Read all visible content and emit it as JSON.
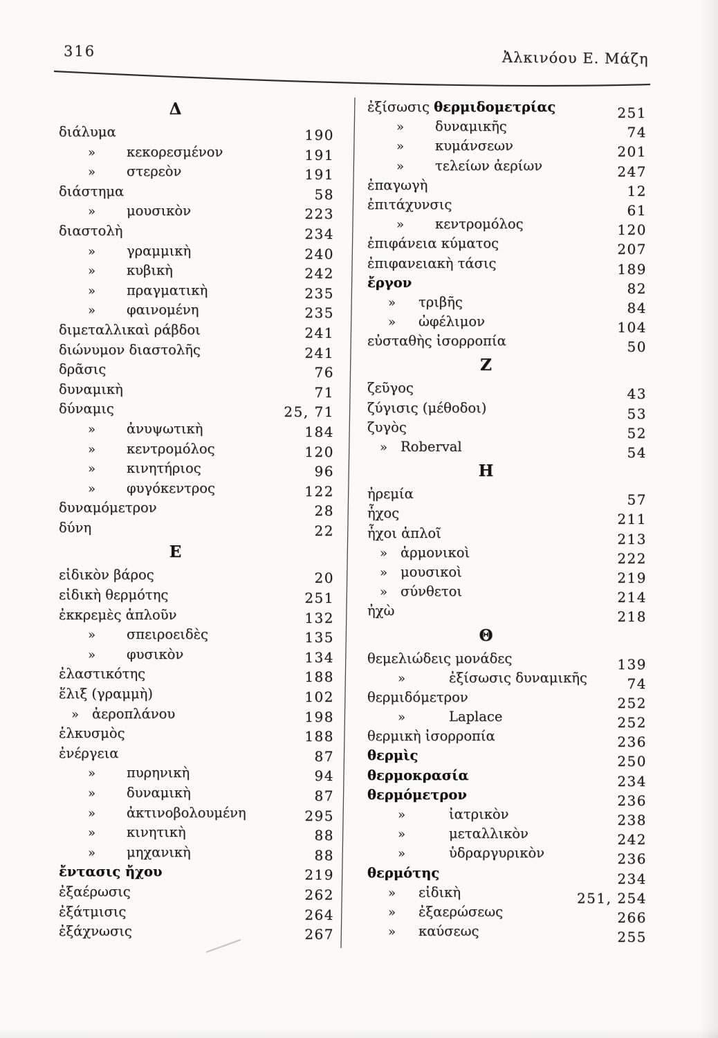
{
  "page": {
    "number": "316",
    "running_title": "Ἀλκινόου Ε. Μάζη"
  },
  "colors": {
    "paper": "#fbfaf7",
    "ink": "#1e1e1e"
  },
  "glyphs": {
    "sub_marker": "»"
  },
  "columns": {
    "left": {
      "sections": [
        {
          "heading": "Δ",
          "entries": [
            {
              "label": "διάλυμα",
              "num": "190",
              "indent": 0
            },
            {
              "label": "κεκορεσμένον",
              "num": "191",
              "indent": 3
            },
            {
              "label": "στερεὸν",
              "num": "191",
              "indent": 3
            },
            {
              "label": "διάστημα",
              "num": "58",
              "indent": 0
            },
            {
              "label": "μουσικὸν",
              "num": "223",
              "indent": 3
            },
            {
              "label": "διαστολὴ",
              "num": "234",
              "indent": 0
            },
            {
              "label": "γραμμικὴ",
              "num": "240",
              "indent": 3
            },
            {
              "label": "κυβικὴ",
              "num": "242",
              "indent": 3
            },
            {
              "label": "πραγματικὴ",
              "num": "235",
              "indent": 3
            },
            {
              "label": "φαινομένη",
              "num": "235",
              "indent": 3
            },
            {
              "label": "διμεταλλικαὶ ράβδοι",
              "num": "241",
              "indent": 0
            },
            {
              "label": "διώνυμον διαστολῆς",
              "num": "241",
              "indent": 0
            },
            {
              "label": "δρᾶσις",
              "num": "76",
              "indent": 0
            },
            {
              "label": "δυναμικὴ",
              "num": "71",
              "indent": 0
            },
            {
              "label": "δύναμις",
              "num": "25, 71",
              "indent": 0
            },
            {
              "label": "ἀνυψωτικὴ",
              "num": "184",
              "indent": 3
            },
            {
              "label": "κεντρομόλος",
              "num": "120",
              "indent": 3
            },
            {
              "label": "κινητήριος",
              "num": "96",
              "indent": 3
            },
            {
              "label": "φυγόκεντρος",
              "num": "122",
              "indent": 3
            },
            {
              "label": "δυναμόμετρον",
              "num": "28",
              "indent": 0
            },
            {
              "label": "δύνη",
              "num": "22",
              "indent": 0
            }
          ]
        },
        {
          "heading": "Ε",
          "entries": [
            {
              "label": "εἰδικὸν βάρος",
              "num": "20",
              "indent": 0
            },
            {
              "label": "εἰδικὴ θερμότης",
              "num": "251",
              "indent": 0
            },
            {
              "label": "ἐκκρεμὲς ἁπλοῦν",
              "num": "132",
              "indent": 0
            },
            {
              "label": "σπειροειδὲς",
              "num": "135",
              "indent": 3
            },
            {
              "label": "φυσικὸν",
              "num": "134",
              "indent": 3
            },
            {
              "label": "ἐλαστικότης",
              "num": "188",
              "indent": 0
            },
            {
              "label": "ἕλιξ (γραμμὴ)",
              "num": "102",
              "indent": 0
            },
            {
              "label": "ἀεροπλάνου",
              "num": "198",
              "indent": 1
            },
            {
              "label": "ἑλκυσμὸς",
              "num": "188",
              "indent": 0
            },
            {
              "label": "ἐνέργεια",
              "num": "87",
              "indent": 0
            },
            {
              "label": "πυρηνικὴ",
              "num": "94",
              "indent": 3
            },
            {
              "label": "δυναμικὴ",
              "num": "87",
              "indent": 3
            },
            {
              "label": "ἀκτινοβολουμένη",
              "num": "295",
              "indent": 3
            },
            {
              "label": "κινητικὴ",
              "num": "88",
              "indent": 3
            },
            {
              "label": "μηχανικὴ",
              "num": "88",
              "indent": 3
            },
            {
              "label": "ἔντασις ἤχου",
              "num": "219",
              "indent": 0,
              "bold": true
            },
            {
              "label": "ἐξαέρωσις",
              "num": "262",
              "indent": 0
            },
            {
              "label": "ἐξάτμισις",
              "num": "264",
              "indent": 0
            },
            {
              "label": "ἐξάχνωσις",
              "num": "267",
              "indent": 0
            }
          ]
        }
      ]
    },
    "right": {
      "sections": [
        {
          "heading": "",
          "entries": [
            {
              "label": "ἐξίσωσις",
              "label_bold": "θερμιδομετρίας",
              "num": "251",
              "indent": 0
            },
            {
              "label": "δυναμικῆς",
              "num": "74",
              "indent": 3
            },
            {
              "label": "κυμάνσεων",
              "num": "201",
              "indent": 3
            },
            {
              "label": "τελείων ἀερίων",
              "num": "247",
              "indent": 3
            },
            {
              "label": "ἐπαγωγὴ",
              "num": "12",
              "indent": 0
            },
            {
              "label": "ἐπιτάχυνσις",
              "num": "61",
              "indent": 0
            },
            {
              "label": "κεντρομόλος",
              "num": "120",
              "indent": 3
            },
            {
              "label": "ἐπιφάνεια κύματος",
              "num": "207",
              "indent": 0
            },
            {
              "label": "ἐπιφανειακὴ τάσις",
              "num": "189",
              "indent": 0
            },
            {
              "label": "ἔργον",
              "num": "82",
              "indent": 0,
              "bold": true
            },
            {
              "label": "τριβῆς",
              "num": "84",
              "indent": 2
            },
            {
              "label": "ὠφέλιμον",
              "num": "104",
              "indent": 2
            },
            {
              "label": "εὐσταθὴς ἰσορροπία",
              "num": "50",
              "indent": 0
            }
          ]
        },
        {
          "heading": "Ζ",
          "entries": [
            {
              "label": "ζεῦγος",
              "num": "43",
              "indent": 0
            },
            {
              "label": "ζύγισις (μέθοδοι)",
              "num": "53",
              "indent": 0
            },
            {
              "label": "ζυγὸς",
              "num": "52",
              "indent": 0
            },
            {
              "label": "Roberval",
              "num": "54",
              "indent": 1
            }
          ]
        },
        {
          "heading": "Η",
          "entries": [
            {
              "label": "ἠρεμία",
              "num": "57",
              "indent": 0
            },
            {
              "label": "ἦχος",
              "num": "211",
              "indent": 0
            },
            {
              "label": "ἦχοι ἁπλοῖ",
              "num": "213",
              "indent": 0
            },
            {
              "label": "ἁρμονικοὶ",
              "num": "222",
              "indent": 1
            },
            {
              "label": "μουσικοὶ",
              "num": "219",
              "indent": 1
            },
            {
              "label": "σύνθετοι",
              "num": "214",
              "indent": 1
            },
            {
              "label": "ἠχὼ",
              "num": "218",
              "indent": 0
            }
          ]
        },
        {
          "heading": "Θ",
          "entries": [
            {
              "label": "θεμελιώδεις μονάδες",
              "num": "139",
              "indent": 0
            },
            {
              "label": "ἐξίσωσις δυναμικῆς",
              "num": "74",
              "indent": 4
            },
            {
              "label": "θερμιδόμετρον",
              "num": "252",
              "indent": 0
            },
            {
              "label": "Laplace",
              "num": "252",
              "indent": 4
            },
            {
              "label": "θερμικὴ ἰσορροπία",
              "num": "236",
              "indent": 0
            },
            {
              "label": "θερμὶς",
              "num": "250",
              "indent": 0,
              "bold": true
            },
            {
              "label": "θερμοκρασία",
              "num": "234",
              "indent": 0,
              "bold": true
            },
            {
              "label": "θερμόμετρον",
              "num": "236",
              "indent": 0,
              "bold": true
            },
            {
              "label": "ἰατρικὸν",
              "num": "238",
              "indent": 4
            },
            {
              "label": "μεταλλικὸν",
              "num": "242",
              "indent": 4
            },
            {
              "label": "ὑδραργυρικὸν",
              "num": "236",
              "indent": 4
            },
            {
              "label": "θερμότης",
              "num": "234",
              "indent": 0,
              "bold": true
            },
            {
              "label": "εἰδικὴ",
              "num": "251, 254",
              "indent": 2
            },
            {
              "label": "ἐξαερώσεως",
              "num": "266",
              "indent": 2
            },
            {
              "label": "καύσεως",
              "num": "255",
              "indent": 2
            }
          ]
        }
      ]
    }
  }
}
